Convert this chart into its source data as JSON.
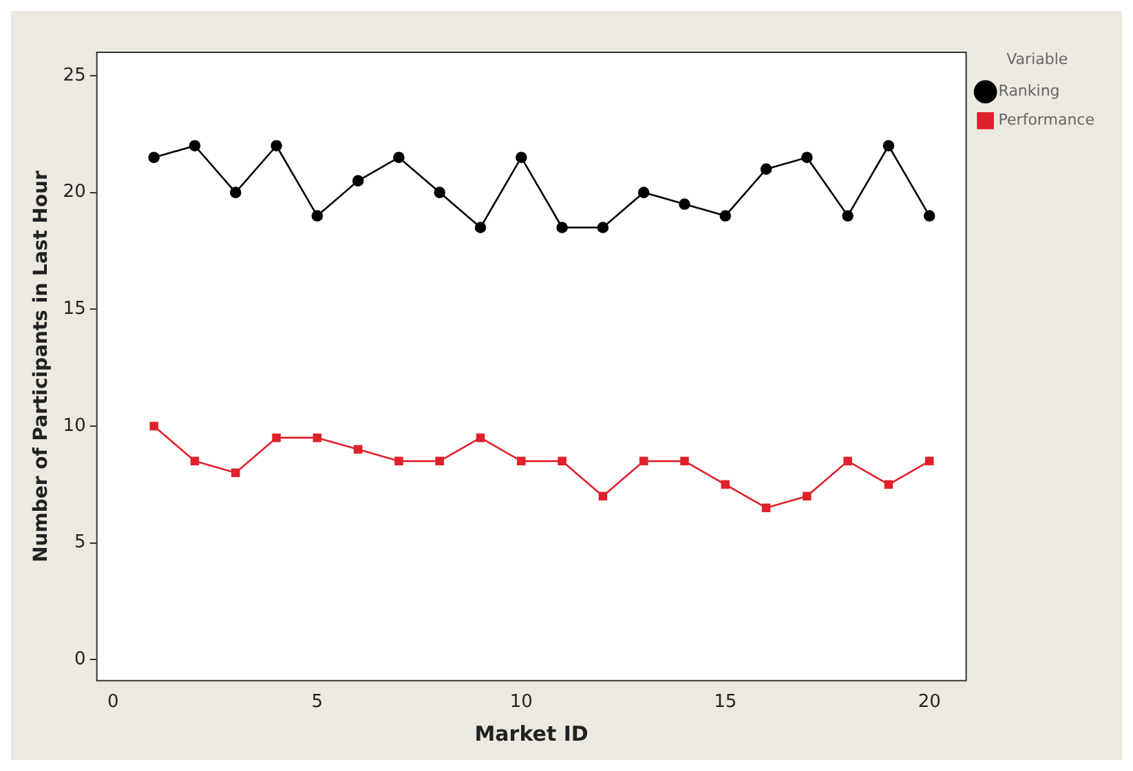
{
  "chart_data": {
    "type": "line",
    "xlabel": "Market ID",
    "ylabel": "Number of Participants in Last Hour",
    "legend_title": "Variable",
    "legend": "top right",
    "x": [
      1,
      2,
      3,
      4,
      5,
      6,
      7,
      8,
      9,
      10,
      11,
      12,
      13,
      14,
      15,
      16,
      17,
      18,
      19,
      20
    ],
    "series": [
      {
        "name": "Ranking",
        "color": "#000000",
        "marker": "circle",
        "values": [
          21.5,
          22,
          20,
          22,
          19,
          20.5,
          21.5,
          20,
          18.5,
          21.5,
          18.5,
          18.5,
          20,
          19.5,
          19,
          21,
          21.5,
          19,
          22,
          19
        ]
      },
      {
        "name": "Performance",
        "color": "#e0202a",
        "marker": "square",
        "values": [
          10,
          8.5,
          8,
          9.5,
          9.5,
          9,
          8.5,
          8.5,
          9.5,
          8.5,
          8.5,
          7,
          8.5,
          8.5,
          7.5,
          6.5,
          7,
          8.5,
          7.5,
          8.5
        ]
      }
    ],
    "xlim": [
      -0.4,
      20.9
    ],
    "xticks": [
      0,
      5,
      10,
      15,
      20
    ],
    "ylim": [
      -0.9,
      26
    ],
    "yticks": [
      0,
      5,
      10,
      15,
      20,
      25
    ],
    "grid": false
  }
}
